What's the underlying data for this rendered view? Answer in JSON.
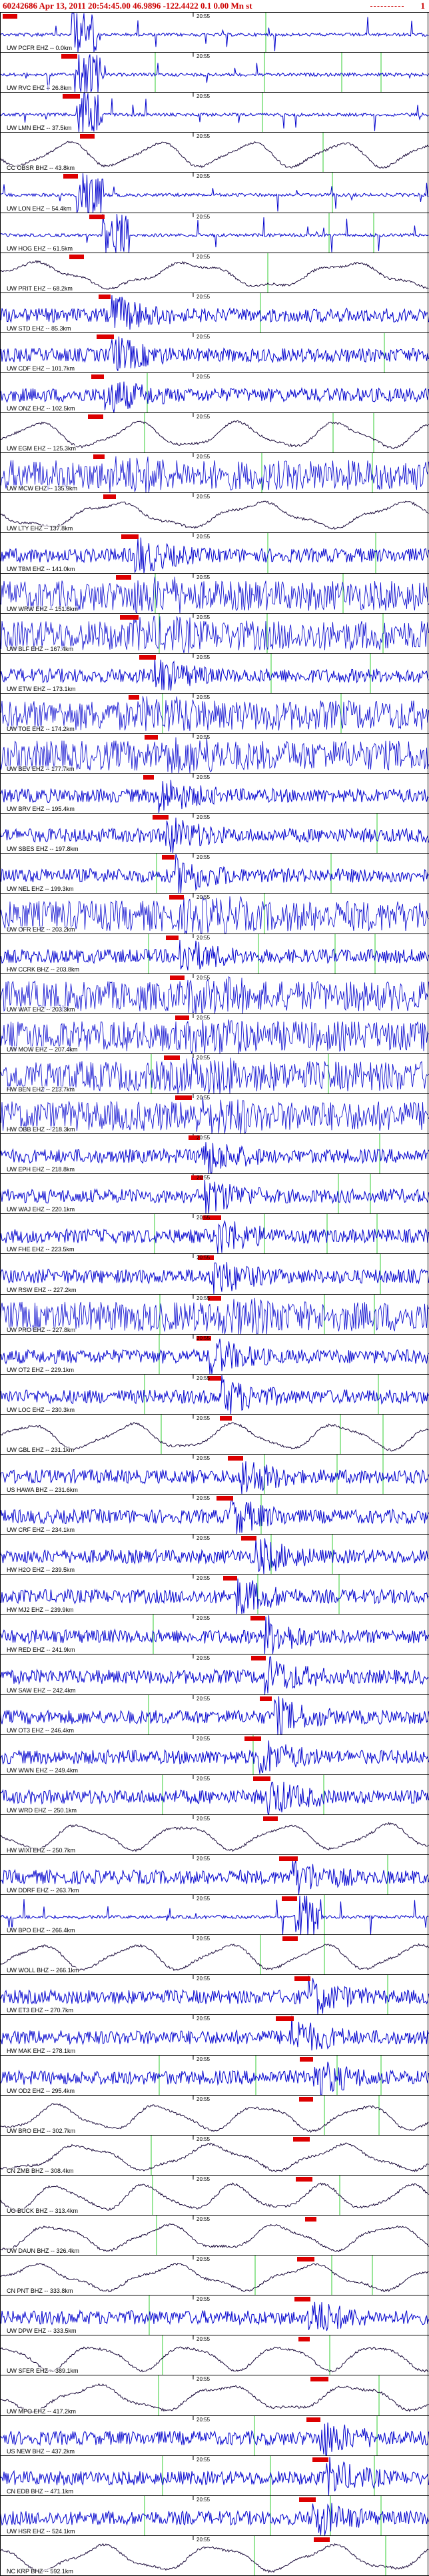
{
  "header": {
    "event_id": "60242686",
    "date": "Apr 13, 2011",
    "time": "20:54:45.00",
    "lat": "46.9896",
    "lon": "-122.4422",
    "depth": "0.1",
    "mag": "0.00",
    "mag_type": "Mn",
    "status": "st",
    "page": "1",
    "title_text": "60242686 Apr 13, 2011 20:54:45.00  46.9896 -122.4422  0.1 0.00 Mn st"
  },
  "colors": {
    "trace_blue": "#0000cc",
    "trace_dark": "#1a0a3a",
    "pick_red": "#dd0000",
    "marker_green": "#33cc33",
    "header_red": "#cc0000"
  },
  "time_tick_label": "20:55",
  "chart_data": {
    "type": "line",
    "title": "60242686 Apr 13, 2011 20:54:45.00  46.9896 -122.4422  0.1 0.00 Mn st",
    "description_mode": "seismogram record section, one trace per station sorted by distance",
    "stations": [
      {
        "label": "UW PCFR EHZ -- 0.0km",
        "style": "spiky"
      },
      {
        "label": "UW RVC EHZ -- 26.8km",
        "style": "spiky"
      },
      {
        "label": "UW LMN EHZ -- 37.5km",
        "style": "spiky"
      },
      {
        "label": "CC OBSR BHZ -- 43.8km",
        "style": "wave"
      },
      {
        "label": "UW LON EHZ -- 54.4km",
        "style": "spiky"
      },
      {
        "label": "UW HOG EHZ -- 61.5km",
        "style": "spiky"
      },
      {
        "label": "UW PRIT EHZ -- 68.2km",
        "style": "wave"
      },
      {
        "label": "UW STD EHZ -- 85.3km",
        "style": "noise"
      },
      {
        "label": "UW CDF EHZ -- 101.7km",
        "style": "noise"
      },
      {
        "label": "UW ONZ EHZ -- 102.5km",
        "style": "noise"
      },
      {
        "label": "UW EGM EHZ -- 125.3km",
        "style": "wave"
      },
      {
        "label": "UW MCW EHZ -- 135.9km",
        "style": "dense"
      },
      {
        "label": "UW LTY EHZ -- 137.8km",
        "style": "wave"
      },
      {
        "label": "UW TBM EHZ -- 141.0km",
        "style": "noise"
      },
      {
        "label": "UW WRW EHZ -- 151.8km",
        "style": "dense"
      },
      {
        "label": "UW BLF EHZ -- 167.4km",
        "style": "dense"
      },
      {
        "label": "UW ETW EHZ -- 173.1km",
        "style": "noise"
      },
      {
        "label": "UW TOE EHZ -- 174.2km",
        "style": "dense"
      },
      {
        "label": "UW BEV EHZ -- 177.7km",
        "style": "dense"
      },
      {
        "label": "UW BRV EHZ -- 195.4km",
        "style": "noise"
      },
      {
        "label": "UW SBES EHZ -- 197.8km",
        "style": "noise"
      },
      {
        "label": "UW NEL EHZ -- 199.3km",
        "style": "noise"
      },
      {
        "label": "UW OFR EHZ -- 203.2km",
        "style": "dense"
      },
      {
        "label": "HW CCRK BHZ -- 203.8km",
        "style": "noise"
      },
      {
        "label": "UW WAT EHZ -- 203.3km",
        "style": "dense"
      },
      {
        "label": "UW MOW EHZ -- 207.4km",
        "style": "dense"
      },
      {
        "label": "HW BEN EHZ -- 213.7km",
        "style": "dense"
      },
      {
        "label": "HW OBB EHZ -- 218.3km",
        "style": "dense"
      },
      {
        "label": "UW EPH EHZ -- 218.8km",
        "style": "noise"
      },
      {
        "label": "UW WAJ EHZ -- 220.1km",
        "style": "noise"
      },
      {
        "label": "UW FHE EHZ -- 223.5km",
        "style": "noise"
      },
      {
        "label": "UW RSW EHZ -- 227.2km",
        "style": "noise"
      },
      {
        "label": "UW PRO EHZ -- 227.8km",
        "style": "dense"
      },
      {
        "label": "UW OT2 EHZ -- 229.1km",
        "style": "noise"
      },
      {
        "label": "UW LOC EHZ -- 230.3km",
        "style": "noise"
      },
      {
        "label": "UW GBL EHZ -- 231.1km",
        "style": "wave"
      },
      {
        "label": "US HAWA BHZ -- 231.6km",
        "style": "noise"
      },
      {
        "label": "UW CRF EHZ -- 234.1km",
        "style": "noise"
      },
      {
        "label": "HW H2O EHZ -- 239.5km",
        "style": "noise"
      },
      {
        "label": "HW MJ2 EHZ -- 239.9km",
        "style": "noise"
      },
      {
        "label": "HW RED EHZ -- 241.9km",
        "style": "noise"
      },
      {
        "label": "UW SAW EHZ -- 242.4km",
        "style": "noise"
      },
      {
        "label": "UW OT3 EHZ -- 246.4km",
        "style": "noise"
      },
      {
        "label": "UW WWN EHZ -- 249.4km",
        "style": "noise"
      },
      {
        "label": "UW WRD EHZ -- 250.1km",
        "style": "noise"
      },
      {
        "label": "HW WIXI EHZ -- 250.7km",
        "style": "wave"
      },
      {
        "label": "UW DDRF EHZ -- 263.7km",
        "style": "noise"
      },
      {
        "label": "UW BPO EHZ -- 266.4km",
        "style": "spiky"
      },
      {
        "label": "UW WOLL BHZ -- 266.1km",
        "style": "wave"
      },
      {
        "label": "UW ET3 EHZ -- 270.7km",
        "style": "noise"
      },
      {
        "label": "HW MAK EHZ -- 278.1km",
        "style": "noise"
      },
      {
        "label": "UW OD2 EHZ -- 295.4km",
        "style": "noise"
      },
      {
        "label": "UW BRO EHZ -- 302.7km",
        "style": "wave"
      },
      {
        "label": "CN ZMB BHZ -- 308.4km",
        "style": "wave"
      },
      {
        "label": "UO BUCK BHZ -- 313.4km",
        "style": "wave"
      },
      {
        "label": "UW DAUN BHZ -- 326.4km",
        "style": "wave"
      },
      {
        "label": "CN PNT BHZ -- 333.8km",
        "style": "wave"
      },
      {
        "label": "UW DPW EHZ -- 333.5km",
        "style": "noise"
      },
      {
        "label": "UW SFER EHZ -- 389.1km",
        "style": "wave"
      },
      {
        "label": "UW MPO EHZ -- 417.2km",
        "style": "wave"
      },
      {
        "label": "US NEW BHZ -- 437.2km",
        "style": "noise"
      },
      {
        "label": "CN EDB BHZ -- 471.1km",
        "style": "noise"
      },
      {
        "label": "UW HSR EHZ -- 524.1km",
        "style": "noise"
      },
      {
        "label": "NC KRP BHZ -- 592.1km",
        "style": "wave"
      }
    ]
  }
}
